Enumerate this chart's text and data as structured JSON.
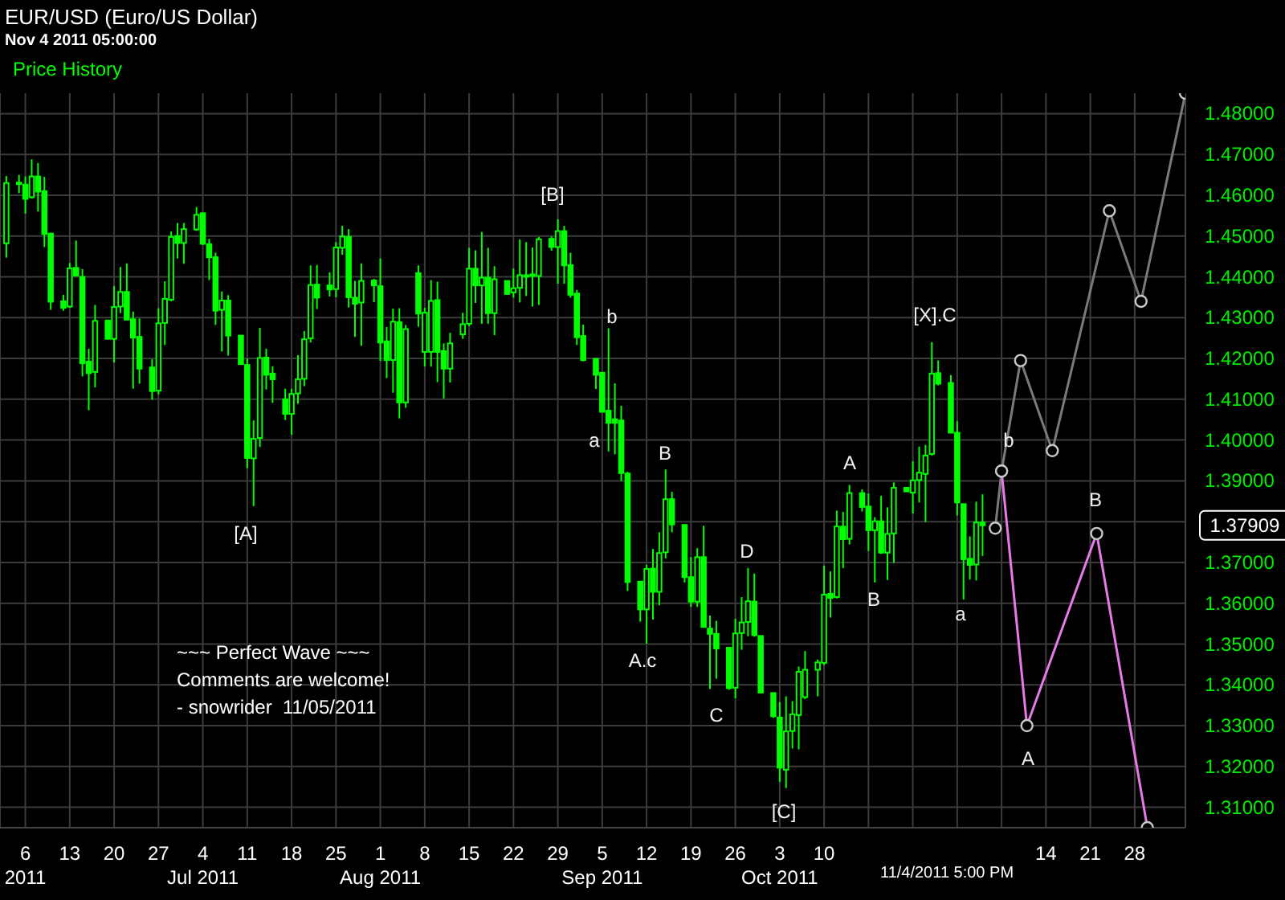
{
  "chart_data": {
    "type": "candlestick",
    "title": "EUR/USD (Euro/US Dollar)",
    "subtitle": "Nov 4 2011 05:00:00",
    "xlim": [
      "2011-06-02",
      "2011-12-06"
    ],
    "xticks": [
      {
        "value": "2011-06-06",
        "label": "6\n2011"
      },
      {
        "value": "2011-06-13",
        "label": "13"
      },
      {
        "value": "2011-06-20",
        "label": "20"
      },
      {
        "value": "2011-06-27",
        "label": "27"
      },
      {
        "value": "2011-07-04",
        "label": "4\nJul 2011"
      },
      {
        "value": "2011-07-11",
        "label": "11"
      },
      {
        "value": "2011-07-18",
        "label": "18"
      },
      {
        "value": "2011-07-25",
        "label": "25"
      },
      {
        "value": "2011-08-01",
        "label": "1\nAug 2011"
      },
      {
        "value": "2011-08-08",
        "label": "8"
      },
      {
        "value": "2011-08-15",
        "label": "15"
      },
      {
        "value": "2011-08-22",
        "label": "22"
      },
      {
        "value": "2011-08-29",
        "label": "29"
      },
      {
        "value": "2011-09-05",
        "label": "5\nSep 2011"
      },
      {
        "value": "2011-09-12",
        "label": "12"
      },
      {
        "value": "2011-09-19",
        "label": "19"
      },
      {
        "value": "2011-09-26",
        "label": "26"
      },
      {
        "value": "2011-10-03",
        "label": "3\nOct 2011"
      },
      {
        "value": "2011-10-10",
        "label": "10"
      },
      {
        "value": "2011-10-17",
        "label": null
      },
      {
        "value": "2011-10-24",
        "label": null
      },
      {
        "value": "2011-10-31",
        "label": null
      },
      {
        "value": "2011-11-07",
        "label": null
      },
      {
        "value": "2011-11-14",
        "label": "14"
      },
      {
        "value": "2011-11-21",
        "label": "21"
      },
      {
        "value": "2011-11-28",
        "label": "28"
      }
    ],
    "ylim": [
      1.305,
      1.485
    ],
    "yticks": [
      {
        "value": 1.31,
        "label": "1.31000"
      },
      {
        "value": 1.32,
        "label": "1.32000"
      },
      {
        "value": 1.33,
        "label": "1.33000"
      },
      {
        "value": 1.34,
        "label": "1.34000"
      },
      {
        "value": 1.35,
        "label": "1.35000"
      },
      {
        "value": 1.36,
        "label": "1.36000"
      },
      {
        "value": 1.37,
        "label": "1.37000"
      },
      {
        "value": 1.37909,
        "label": "1.37909"
      },
      {
        "value": 1.38,
        "label": null
      },
      {
        "value": 1.39,
        "label": "1.39000"
      },
      {
        "value": 1.4,
        "label": "1.40000"
      },
      {
        "value": 1.41,
        "label": "1.41000"
      },
      {
        "value": 1.42,
        "label": "1.42000"
      },
      {
        "value": 1.43,
        "label": "1.43000"
      },
      {
        "value": 1.44,
        "label": "1.44000"
      },
      {
        "value": 1.45,
        "label": "1.45000"
      },
      {
        "value": 1.46,
        "label": "1.46000"
      },
      {
        "value": 1.47,
        "label": "1.47000"
      },
      {
        "value": 1.48,
        "label": "1.48000"
      }
    ],
    "grid": true,
    "legend": "top left",
    "marker": "circle",
    "line_style": "solid",
    "series": [
      {
        "name": "Price History",
        "color": "#00ff00",
        "x": [
          "2011-06-03",
          "2011-06-05",
          "2011-06-06",
          "2011-06-07",
          "2011-06-08",
          "2011-06-09",
          "2011-06-10",
          "2011-06-12",
          "2011-06-13",
          "2011-06-14",
          "2011-06-15",
          "2011-06-16",
          "2011-06-17",
          "2011-06-19",
          "2011-06-20",
          "2011-06-21",
          "2011-06-22",
          "2011-06-23",
          "2011-06-24",
          "2011-06-26",
          "2011-06-27",
          "2011-06-28",
          "2011-06-29",
          "2011-06-30",
          "2011-07-01",
          "2011-07-03",
          "2011-07-04",
          "2011-07-05",
          "2011-07-06",
          "2011-07-07",
          "2011-07-08",
          "2011-07-10",
          "2011-07-11",
          "2011-07-12",
          "2011-07-13",
          "2011-07-14",
          "2011-07-15",
          "2011-07-17",
          "2011-07-18",
          "2011-07-19",
          "2011-07-20",
          "2011-07-21",
          "2011-07-22",
          "2011-07-24",
          "2011-07-25",
          "2011-07-26",
          "2011-07-27",
          "2011-07-28",
          "2011-07-29",
          "2011-07-31",
          "2011-08-01",
          "2011-08-02",
          "2011-08-03",
          "2011-08-04",
          "2011-08-05",
          "2011-08-07",
          "2011-08-08",
          "2011-08-09",
          "2011-08-10",
          "2011-08-11",
          "2011-08-12",
          "2011-08-14",
          "2011-08-15",
          "2011-08-16",
          "2011-08-17",
          "2011-08-18",
          "2011-08-19",
          "2011-08-21",
          "2011-08-22",
          "2011-08-23",
          "2011-08-24",
          "2011-08-25",
          "2011-08-26",
          "2011-08-28",
          "2011-08-29",
          "2011-08-30",
          "2011-08-31",
          "2011-09-01",
          "2011-09-02",
          "2011-09-04",
          "2011-09-05",
          "2011-09-06",
          "2011-09-07",
          "2011-09-08",
          "2011-09-09",
          "2011-09-11",
          "2011-09-12",
          "2011-09-13",
          "2011-09-14",
          "2011-09-15",
          "2011-09-16",
          "2011-09-18",
          "2011-09-19",
          "2011-09-20",
          "2011-09-21",
          "2011-09-22",
          "2011-09-23",
          "2011-09-25",
          "2011-09-26",
          "2011-09-27",
          "2011-09-28",
          "2011-09-29",
          "2011-09-30",
          "2011-10-02",
          "2011-10-03",
          "2011-10-04",
          "2011-10-05",
          "2011-10-06",
          "2011-10-07",
          "2011-10-09",
          "2011-10-10",
          "2011-10-11",
          "2011-10-12",
          "2011-10-13",
          "2011-10-14",
          "2011-10-16",
          "2011-10-17",
          "2011-10-18",
          "2011-10-19",
          "2011-10-20",
          "2011-10-21",
          "2011-10-23",
          "2011-10-24",
          "2011-10-25",
          "2011-10-26",
          "2011-10-27",
          "2011-10-28",
          "2011-10-30",
          "2011-10-31",
          "2011-11-01",
          "2011-11-02",
          "2011-11-03",
          "2011-11-04"
        ],
        "ohlc": [
          [
            1.4482,
            1.4647,
            1.4447,
            1.463
          ],
          [
            1.4631,
            1.465,
            1.4605,
            1.4628
          ],
          [
            1.4626,
            1.4646,
            1.4555,
            1.4591
          ],
          [
            1.4595,
            1.4688,
            1.4592,
            1.4646
          ],
          [
            1.4646,
            1.4679,
            1.456,
            1.4609
          ],
          [
            1.461,
            1.4645,
            1.4473,
            1.4505
          ],
          [
            1.4506,
            1.4508,
            1.4319,
            1.4339
          ],
          [
            1.434,
            1.4356,
            1.4317,
            1.4324
          ],
          [
            1.4327,
            1.4434,
            1.4324,
            1.4421
          ],
          [
            1.4422,
            1.4489,
            1.4403,
            1.4403
          ],
          [
            1.44,
            1.4419,
            1.4156,
            1.4188
          ],
          [
            1.4192,
            1.4224,
            1.4073,
            1.4164
          ],
          [
            1.4167,
            1.4331,
            1.4129,
            1.4292
          ],
          [
            1.4293,
            1.4293,
            1.4248,
            1.4248
          ],
          [
            1.4248,
            1.4377,
            1.419,
            1.4326
          ],
          [
            1.4327,
            1.4424,
            1.4311,
            1.4363
          ],
          [
            1.4363,
            1.4433,
            1.4295,
            1.4295
          ],
          [
            1.4296,
            1.4315,
            1.4126,
            1.4251
          ],
          [
            1.4253,
            1.4298,
            1.4138,
            1.4175
          ],
          [
            1.4178,
            1.4198,
            1.4099,
            1.412
          ],
          [
            1.4121,
            1.4323,
            1.4112,
            1.4286
          ],
          [
            1.4287,
            1.4389,
            1.4233,
            1.4346
          ],
          [
            1.4344,
            1.4511,
            1.434,
            1.4498
          ],
          [
            1.45,
            1.4532,
            1.4445,
            1.4483
          ],
          [
            1.4483,
            1.4532,
            1.4432,
            1.4517
          ],
          [
            1.4516,
            1.4571,
            1.4513,
            1.4552
          ],
          [
            1.4556,
            1.4556,
            1.4478,
            1.4481
          ],
          [
            1.448,
            1.4493,
            1.4392,
            1.4448
          ],
          [
            1.4448,
            1.4459,
            1.4282,
            1.4317
          ],
          [
            1.4319,
            1.4364,
            1.4217,
            1.4342
          ],
          [
            1.4342,
            1.4355,
            1.4207,
            1.4256
          ],
          [
            1.4256,
            1.4256,
            1.4186,
            1.4186
          ],
          [
            1.4184,
            1.42,
            1.3931,
            1.3956
          ],
          [
            1.3955,
            1.4048,
            1.3838,
            1.4003
          ],
          [
            1.4005,
            1.4275,
            1.3983,
            1.4201
          ],
          [
            1.4202,
            1.4224,
            1.4124,
            1.416
          ],
          [
            1.4163,
            1.4181,
            1.4091,
            1.4149
          ],
          [
            1.41,
            1.4126,
            1.4049,
            1.4064
          ],
          [
            1.4064,
            1.4126,
            1.4013,
            1.4113
          ],
          [
            1.4114,
            1.4208,
            1.4089,
            1.4149
          ],
          [
            1.415,
            1.4267,
            1.4132,
            1.4247
          ],
          [
            1.4249,
            1.4428,
            1.4239,
            1.438
          ],
          [
            1.4381,
            1.4429,
            1.4321,
            1.4349
          ],
          [
            1.4379,
            1.4411,
            1.4352,
            1.4369
          ],
          [
            1.437,
            1.4485,
            1.435,
            1.4472
          ],
          [
            1.4471,
            1.4525,
            1.4454,
            1.4499
          ],
          [
            1.4498,
            1.4517,
            1.4325,
            1.435
          ],
          [
            1.4349,
            1.439,
            1.4253,
            1.4334
          ],
          [
            1.4337,
            1.4433,
            1.4231,
            1.439
          ],
          [
            1.4391,
            1.4395,
            1.4338,
            1.4379
          ],
          [
            1.4377,
            1.4445,
            1.4194,
            1.4239
          ],
          [
            1.4242,
            1.4277,
            1.4152,
            1.4196
          ],
          [
            1.4196,
            1.4322,
            1.4116,
            1.429
          ],
          [
            1.4289,
            1.4323,
            1.4053,
            1.4092
          ],
          [
            1.4092,
            1.4282,
            1.4079,
            1.4272
          ],
          [
            1.4409,
            1.4428,
            1.4278,
            1.431
          ],
          [
            1.4216,
            1.4324,
            1.418,
            1.4312
          ],
          [
            1.4216,
            1.4392,
            1.418,
            1.4341
          ],
          [
            1.4343,
            1.4388,
            1.4142,
            1.4216
          ],
          [
            1.4218,
            1.4237,
            1.4102,
            1.4175
          ],
          [
            1.4175,
            1.4263,
            1.4141,
            1.4237
          ],
          [
            1.4259,
            1.4312,
            1.4248,
            1.4284
          ],
          [
            1.4285,
            1.4471,
            1.4279,
            1.442
          ],
          [
            1.442,
            1.4465,
            1.4336,
            1.4379
          ],
          [
            1.4379,
            1.451,
            1.4285,
            1.4398
          ],
          [
            1.4398,
            1.4471,
            1.4285,
            1.4311
          ],
          [
            1.4311,
            1.4426,
            1.4257,
            1.4394
          ],
          [
            1.439,
            1.439,
            1.4356,
            1.4358
          ],
          [
            1.4362,
            1.442,
            1.4349,
            1.4372
          ],
          [
            1.4373,
            1.4492,
            1.4337,
            1.4404
          ],
          [
            1.4404,
            1.4485,
            1.4353,
            1.4402
          ],
          [
            1.4402,
            1.4472,
            1.4327,
            1.4406
          ],
          [
            1.4402,
            1.4498,
            1.4331,
            1.4492
          ],
          [
            1.4493,
            1.4499,
            1.4464,
            1.4473
          ],
          [
            1.4473,
            1.4541,
            1.4383,
            1.4512
          ],
          [
            1.4512,
            1.4525,
            1.4383,
            1.4428
          ],
          [
            1.4429,
            1.4459,
            1.4349,
            1.4356
          ],
          [
            1.4359,
            1.4368,
            1.4233,
            1.4252
          ],
          [
            1.4255,
            1.4283,
            1.4193,
            1.4196
          ],
          [
            1.4199,
            1.4199,
            1.4125,
            1.416
          ],
          [
            1.4165,
            1.4165,
            1.4069,
            1.4069
          ],
          [
            1.4072,
            1.4274,
            1.3972,
            1.4042
          ],
          [
            1.4051,
            1.4139,
            1.3965,
            1.4042
          ],
          [
            1.4048,
            1.4084,
            1.39,
            1.3919
          ],
          [
            1.3918,
            1.3922,
            1.363,
            1.3652
          ],
          [
            1.3653,
            1.3653,
            1.3555,
            1.3585
          ],
          [
            1.3585,
            1.3694,
            1.3501,
            1.3684
          ],
          [
            1.3685,
            1.3733,
            1.356,
            1.3628
          ],
          [
            1.3628,
            1.3774,
            1.3595,
            1.3723
          ],
          [
            1.3725,
            1.3928,
            1.371,
            1.3855
          ],
          [
            1.3855,
            1.3873,
            1.3774,
            1.3793
          ],
          [
            1.3792,
            1.3792,
            1.3651,
            1.3664
          ],
          [
            1.3664,
            1.3713,
            1.3591,
            1.3604
          ],
          [
            1.3604,
            1.3735,
            1.3591,
            1.3713
          ],
          [
            1.3713,
            1.379,
            1.354,
            1.3542
          ],
          [
            1.3538,
            1.357,
            1.339,
            1.3525
          ],
          [
            1.3525,
            1.3557,
            1.3415,
            1.3489
          ],
          [
            1.3491,
            1.3491,
            1.3388,
            1.3392
          ],
          [
            1.3393,
            1.3562,
            1.3367,
            1.3526
          ],
          [
            1.3527,
            1.3615,
            1.3486,
            1.3553
          ],
          [
            1.3554,
            1.3686,
            1.3519,
            1.3605
          ],
          [
            1.3604,
            1.3673,
            1.3518,
            1.3522
          ],
          [
            1.352,
            1.352,
            1.3379,
            1.3381
          ],
          [
            1.338,
            1.338,
            1.3319,
            1.3323
          ],
          [
            1.332,
            1.3358,
            1.3162,
            1.3197
          ],
          [
            1.3192,
            1.3372,
            1.3147,
            1.3286
          ],
          [
            1.3287,
            1.336,
            1.3244,
            1.3328
          ],
          [
            1.3326,
            1.3445,
            1.3242,
            1.3432
          ],
          [
            1.337,
            1.3483,
            1.3365,
            1.3437
          ],
          [
            1.3437,
            1.3462,
            1.3372,
            1.3455
          ],
          [
            1.3454,
            1.3692,
            1.3448,
            1.3621
          ],
          [
            1.3623,
            1.3678,
            1.3565,
            1.3613
          ],
          [
            1.3615,
            1.3827,
            1.3612,
            1.3788
          ],
          [
            1.3788,
            1.3824,
            1.3686,
            1.3757
          ],
          [
            1.3758,
            1.389,
            1.3744,
            1.387
          ],
          [
            1.387,
            1.3879,
            1.3825,
            1.3836
          ],
          [
            1.3837,
            1.3869,
            1.3728,
            1.3779
          ],
          [
            1.3779,
            1.3811,
            1.3651,
            1.3801
          ],
          [
            1.3801,
            1.3863,
            1.3721,
            1.3724
          ],
          [
            1.3724,
            1.3835,
            1.3657,
            1.377
          ],
          [
            1.3771,
            1.3896,
            1.3699,
            1.3883
          ],
          [
            1.3883,
            1.3883,
            1.3874,
            1.3874
          ],
          [
            1.3871,
            1.3948,
            1.382,
            1.3901
          ],
          [
            1.3902,
            1.3984,
            1.3847,
            1.392
          ],
          [
            1.3917,
            1.3988,
            1.3799,
            1.3962
          ],
          [
            1.3966,
            1.424,
            1.3962,
            1.4163
          ],
          [
            1.4164,
            1.4195,
            1.4134,
            1.4138
          ],
          [
            1.414,
            1.4159,
            1.4018,
            1.4018
          ],
          [
            1.4018,
            1.4046,
            1.3815,
            1.3847
          ],
          [
            1.3843,
            1.3843,
            1.3609,
            1.3708
          ],
          [
            1.3709,
            1.3764,
            1.3658,
            1.3694
          ],
          [
            1.3695,
            1.3849,
            1.3656,
            1.3798
          ],
          [
            1.3798,
            1.3867,
            1.3716,
            1.3791
          ]
        ]
      },
      {
        "type": "line",
        "color": "#7a7a7a",
        "x": [
          "2011-11-06",
          "2011-11-07",
          "2011-11-10",
          "2011-11-15",
          "2011-11-24",
          "2011-11-29",
          "2011-12-06"
        ],
        "values": [
          1.3784,
          1.3924,
          1.4195,
          1.3974,
          1.4562,
          1.434,
          1.485
        ]
      },
      {
        "type": "line",
        "color": "#e67ae6",
        "x": [
          "2011-11-07",
          "2011-11-11",
          "2011-11-22",
          "2011-11-30"
        ],
        "values": [
          1.3924,
          1.33,
          1.3771,
          1.305
        ]
      }
    ],
    "annotations": [
      "~~~ Perfect Wave ~~~\nComments are welcome!\n- snowrider  11/05/2011",
      "11/4/2011 5:00 PM",
      "[A]",
      "[B]",
      "b",
      "a",
      "B",
      "A.c",
      "D",
      "C",
      "[C]",
      "A",
      "B",
      "[X].C",
      "a",
      "b",
      "A",
      "B"
    ]
  }
}
